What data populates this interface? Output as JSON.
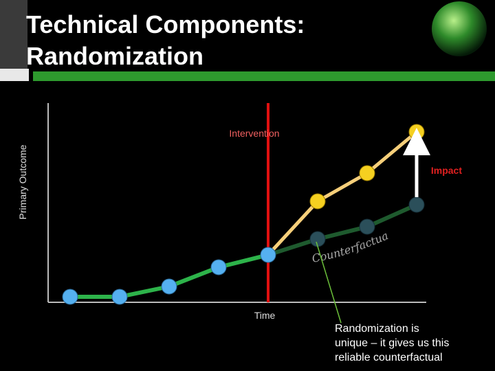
{
  "title_lines": [
    "Technical Components:",
    "Randomization"
  ],
  "labels": {
    "y_axis": "Primary Outcome",
    "x_axis": "Time",
    "intervention": "Intervention",
    "impact": "Impact",
    "counterfactual": "Counterfactual"
  },
  "note_lines": [
    "Randomization is",
    "unique – it gives us this",
    "reliable counterfactual"
  ]
}
